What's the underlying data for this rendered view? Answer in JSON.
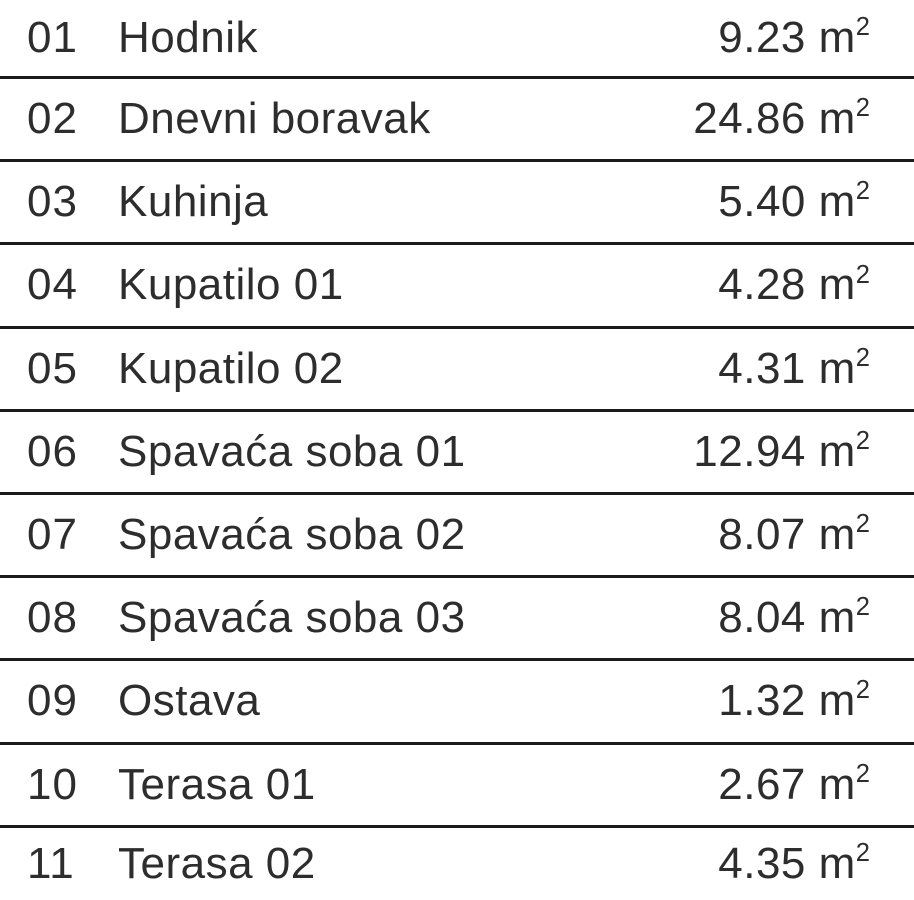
{
  "meta": {
    "description": "Room area schedule (floor plan legend)",
    "language": "Serbian/Croatian"
  },
  "colors": {
    "background": "#ffffff",
    "text": "#2d2d2d",
    "divider": "#1b1b1b"
  },
  "unit": {
    "base": "m",
    "exponent": "2"
  },
  "table": {
    "rows": [
      {
        "num": "01",
        "name": "Hodnik",
        "area": "9.23"
      },
      {
        "num": "02",
        "name": "Dnevni boravak",
        "area": "24.86"
      },
      {
        "num": "03",
        "name": "Kuhinja",
        "area": "5.40"
      },
      {
        "num": "04",
        "name": "Kupatilo 01",
        "area": "4.28"
      },
      {
        "num": "05",
        "name": "Kupatilo 02",
        "area": "4.31"
      },
      {
        "num": "06",
        "name": "Spavaća soba 01",
        "area": "12.94"
      },
      {
        "num": "07",
        "name": "Spavaća soba 02",
        "area": "8.07"
      },
      {
        "num": "08",
        "name": "Spavaća soba 03",
        "area": "8.04"
      },
      {
        "num": "09",
        "name": "Ostava",
        "area": "1.32"
      },
      {
        "num": "10",
        "name": "Terasa 01",
        "area": "2.67"
      },
      {
        "num": "11",
        "name": "Terasa 02",
        "area": "4.35"
      }
    ]
  },
  "chart_data": {
    "type": "table",
    "title": "",
    "columns": [
      "number",
      "room_name",
      "area_m2"
    ],
    "rows": [
      [
        "01",
        "Hodnik",
        9.23
      ],
      [
        "02",
        "Dnevni boravak",
        24.86
      ],
      [
        "03",
        "Kuhinja",
        5.4
      ],
      [
        "04",
        "Kupatilo 01",
        4.28
      ],
      [
        "05",
        "Kupatilo 02",
        4.31
      ],
      [
        "06",
        "Spavaća soba 01",
        12.94
      ],
      [
        "07",
        "Spavaća soba 02",
        8.07
      ],
      [
        "08",
        "Spavaća soba 03",
        8.04
      ],
      [
        "09",
        "Ostava",
        1.32
      ],
      [
        "10",
        "Terasa 01",
        2.67
      ],
      [
        "11",
        "Terasa 02",
        4.35
      ]
    ]
  }
}
